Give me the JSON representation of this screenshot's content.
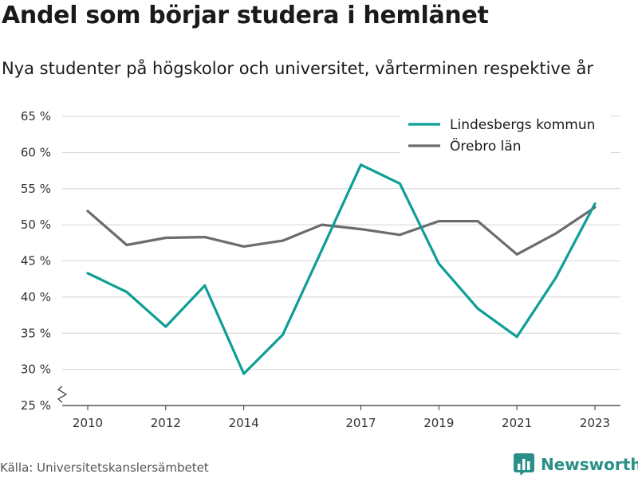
{
  "title": "Andel som börjar studera i hemlänet",
  "subtitle": "Nya studenter på högskolor och universitet, vårterminen respektive år",
  "source": "Källa: Universitetskanslersämbetet",
  "brand": "Newsworthy",
  "colors": {
    "series1": "#0e9e96",
    "series2": "#6b6b70",
    "grid": "#d4d4d4",
    "brand": "#2a8f87"
  },
  "icons": {
    "brand_logo": "bar-chart-logo-icon",
    "axis_break": "zigzag-axis-break-icon"
  },
  "chart_data": {
    "type": "line",
    "title": "",
    "xlabel": "",
    "ylabel": "",
    "x": [
      2010,
      2011,
      2012,
      2013,
      2014,
      2015,
      2016,
      2017,
      2018,
      2019,
      2020,
      2021,
      2022,
      2023
    ],
    "x_ticks": [
      2010,
      2012,
      2014,
      2017,
      2019,
      2021,
      2023
    ],
    "x_tick_labels": [
      "2010",
      "2012",
      "2014",
      "2017",
      "2019",
      "2021",
      "2023"
    ],
    "y_ticks": [
      25,
      30,
      35,
      40,
      45,
      50,
      55,
      60,
      65
    ],
    "y_tick_labels": [
      "25 %",
      "30 %",
      "35 %",
      "40 %",
      "45 %",
      "50 %",
      "55 %",
      "60 %",
      "65 %"
    ],
    "ylim": [
      25,
      65
    ],
    "xlim": [
      2010,
      2023
    ],
    "grid": "horizontal",
    "legend_position": "top-right",
    "series": [
      {
        "name": "Lindesbergs kommun",
        "values": [
          43.3,
          40.7,
          35.9,
          41.6,
          29.4,
          34.8,
          46.5,
          58.3,
          55.7,
          44.6,
          38.4,
          34.5,
          42.7,
          52.9
        ]
      },
      {
        "name": "Örebro län",
        "values": [
          51.9,
          47.2,
          48.2,
          48.3,
          47.0,
          47.8,
          50.0,
          49.4,
          48.6,
          50.5,
          50.5,
          45.9,
          48.8,
          52.4
        ]
      }
    ]
  }
}
